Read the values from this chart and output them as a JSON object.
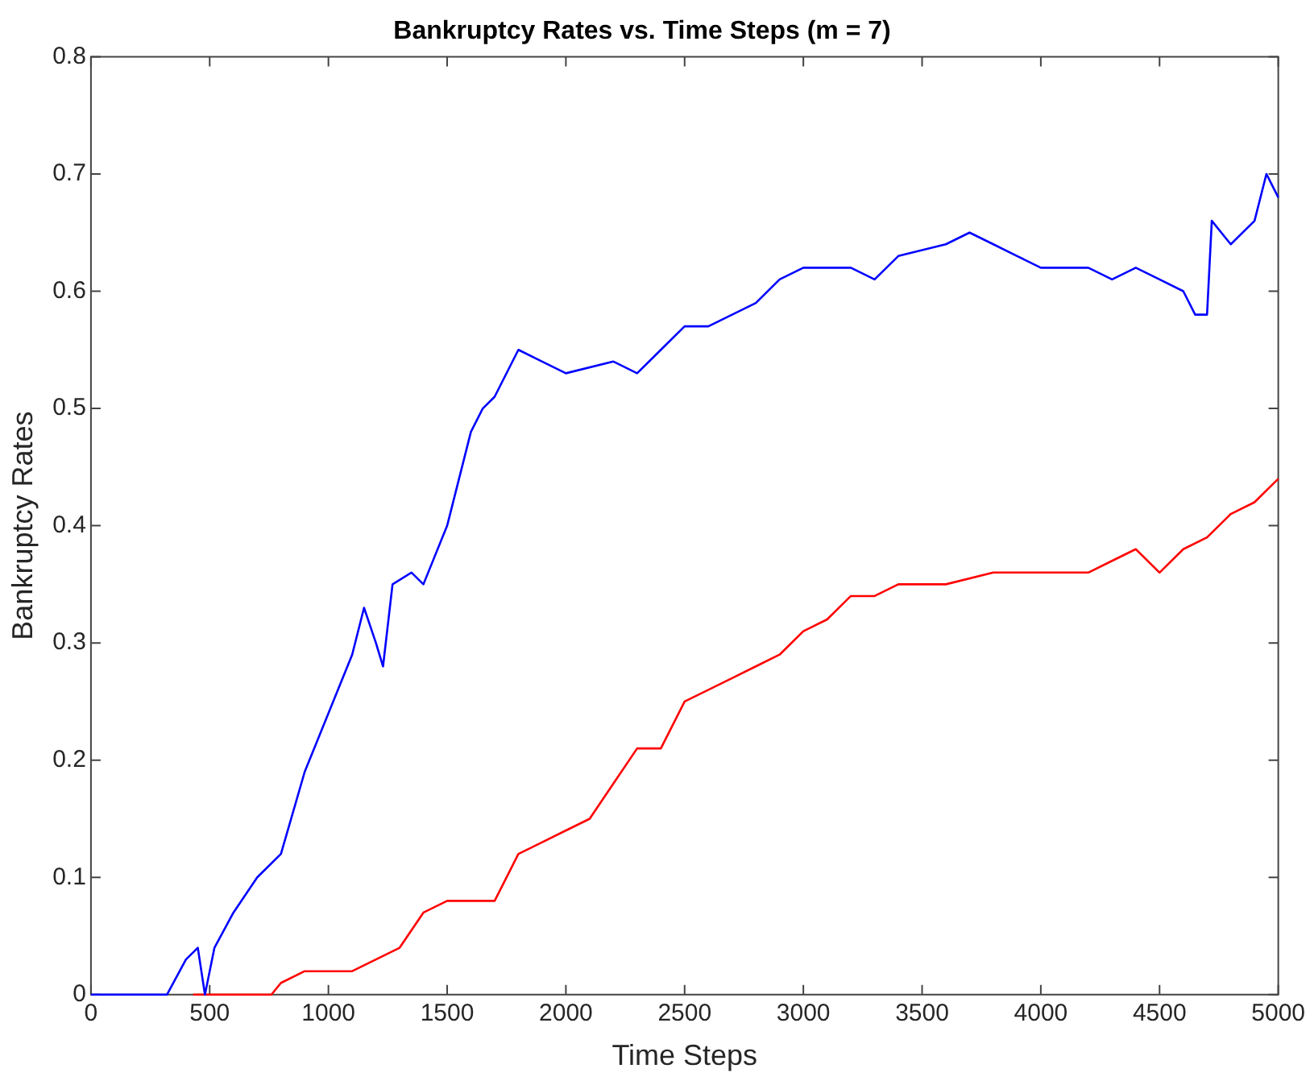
{
  "chart_data": {
    "type": "line",
    "title": "Bankruptcy Rates vs. Time Steps (m = 7)",
    "xlabel": "Time Steps",
    "ylabel": "Bankruptcy Rates",
    "xlim": [
      0,
      5000
    ],
    "xticks": [
      0,
      500,
      1000,
      1500,
      2000,
      2500,
      3000,
      3500,
      4000,
      4500,
      5000
    ],
    "ylim": [
      0,
      0.8
    ],
    "yticks": [
      0,
      0.1,
      0.2,
      0.3,
      0.4,
      0.5,
      0.6,
      0.7,
      0.8
    ],
    "grid": false,
    "legend": false,
    "marker": "none",
    "line_style": "solid",
    "series": [
      {
        "color": "#0000ff",
        "x": [
          0,
          320,
          400,
          450,
          480,
          520,
          600,
          700,
          800,
          900,
          1000,
          1100,
          1150,
          1200,
          1230,
          1270,
          1350,
          1400,
          1500,
          1600,
          1650,
          1700,
          1800,
          1900,
          2000,
          2200,
          2300,
          2400,
          2500,
          2600,
          2700,
          2800,
          2900,
          3000,
          3200,
          3300,
          3400,
          3600,
          3700,
          3800,
          3900,
          4000,
          4200,
          4300,
          4400,
          4500,
          4600,
          4650,
          4700,
          4720,
          4800,
          4900,
          4950,
          5000
        ],
        "values": [
          0,
          0,
          0.03,
          0.04,
          0,
          0.04,
          0.07,
          0.1,
          0.12,
          0.19,
          0.24,
          0.29,
          0.33,
          0.3,
          0.28,
          0.35,
          0.36,
          0.35,
          0.4,
          0.48,
          0.5,
          0.51,
          0.55,
          0.54,
          0.53,
          0.54,
          0.53,
          0.55,
          0.57,
          0.57,
          0.58,
          0.59,
          0.61,
          0.62,
          0.62,
          0.61,
          0.63,
          0.64,
          0.65,
          0.64,
          0.63,
          0.62,
          0.62,
          0.61,
          0.62,
          0.61,
          0.6,
          0.58,
          0.58,
          0.66,
          0.64,
          0.66,
          0.7,
          0.68
        ]
      },
      {
        "color": "#ff0000",
        "x": [
          430,
          760,
          800,
          900,
          1100,
          1200,
          1300,
          1400,
          1500,
          1700,
          1800,
          1900,
          2000,
          2100,
          2200,
          2300,
          2400,
          2500,
          2600,
          2700,
          2800,
          2900,
          3000,
          3100,
          3200,
          3300,
          3400,
          3600,
          3800,
          4200,
          4300,
          4400,
          4500,
          4600,
          4700,
          4800,
          4900,
          5000
        ],
        "values": [
          0,
          0,
          0.01,
          0.02,
          0.02,
          0.03,
          0.04,
          0.07,
          0.08,
          0.08,
          0.12,
          0.13,
          0.14,
          0.15,
          0.18,
          0.21,
          0.21,
          0.25,
          0.26,
          0.27,
          0.28,
          0.29,
          0.31,
          0.32,
          0.34,
          0.34,
          0.35,
          0.35,
          0.36,
          0.36,
          0.37,
          0.38,
          0.36,
          0.38,
          0.39,
          0.41,
          0.42,
          0.44
        ]
      }
    ]
  }
}
